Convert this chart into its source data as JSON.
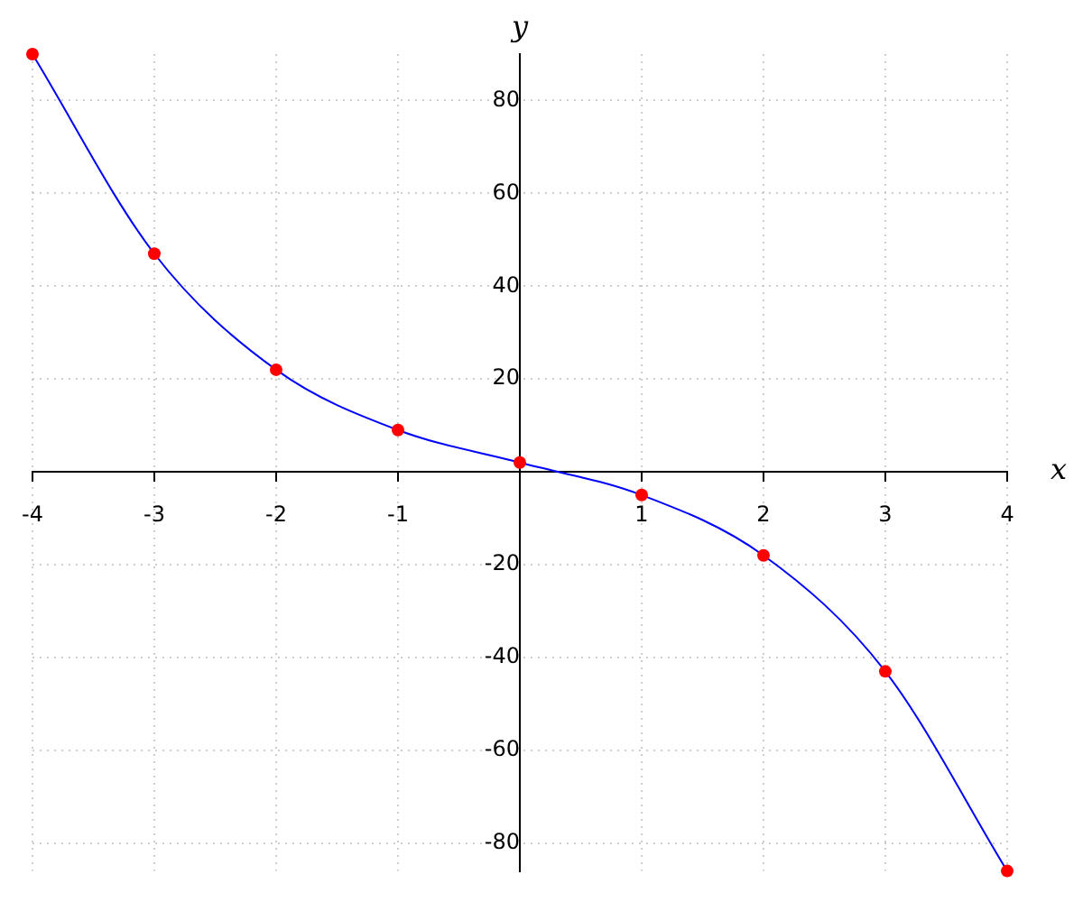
{
  "chart_data": {
    "type": "line",
    "xlabel": "x",
    "ylabel": "y",
    "x": [
      -4,
      -3,
      -2,
      -1,
      0,
      1,
      2,
      3,
      4
    ],
    "series": [
      {
        "color": "#0000ff",
        "marker": "none",
        "values": [
          90,
          47,
          22,
          9,
          2,
          -5,
          -18,
          -43,
          -86
        ]
      },
      {
        "type": "scatter",
        "color": "#ff0000",
        "marker": "circle",
        "values": [
          90,
          47,
          22,
          9,
          2,
          -5,
          -18,
          -43,
          -86
        ]
      }
    ],
    "xlim": [
      -4,
      4
    ],
    "xticks": [
      -4,
      -3,
      -2,
      -1,
      1,
      2,
      3,
      4
    ],
    "ylim": [
      -86,
      90
    ],
    "yticks": [
      -80,
      -60,
      -40,
      -20,
      20,
      40,
      60,
      80
    ],
    "grid": true,
    "line_style": "solid",
    "legend": false
  }
}
